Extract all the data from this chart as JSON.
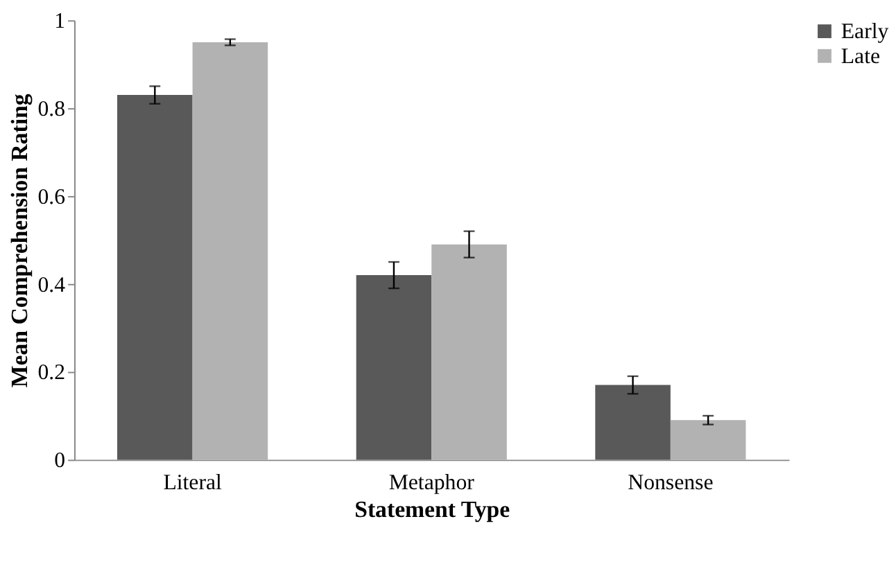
{
  "chart_data": {
    "type": "bar",
    "xlabel": "Statement Type",
    "ylabel": "Mean Comprehension Rating",
    "categories": [
      "Literal",
      "Metaphor",
      "Nonsense"
    ],
    "series": [
      {
        "name": "Early",
        "color": "#595959",
        "values": [
          0.83,
          0.42,
          0.17
        ],
        "errors": [
          0.02,
          0.03,
          0.02
        ]
      },
      {
        "name": "Late",
        "color": "#b2b2b2",
        "values": [
          0.95,
          0.49,
          0.09
        ],
        "errors": [
          0.007,
          0.03,
          0.01
        ]
      }
    ],
    "ylim": [
      0,
      1
    ],
    "yticks": [
      0,
      0.2,
      0.4,
      0.6,
      0.8,
      1
    ],
    "grid": false,
    "legend": "right"
  }
}
